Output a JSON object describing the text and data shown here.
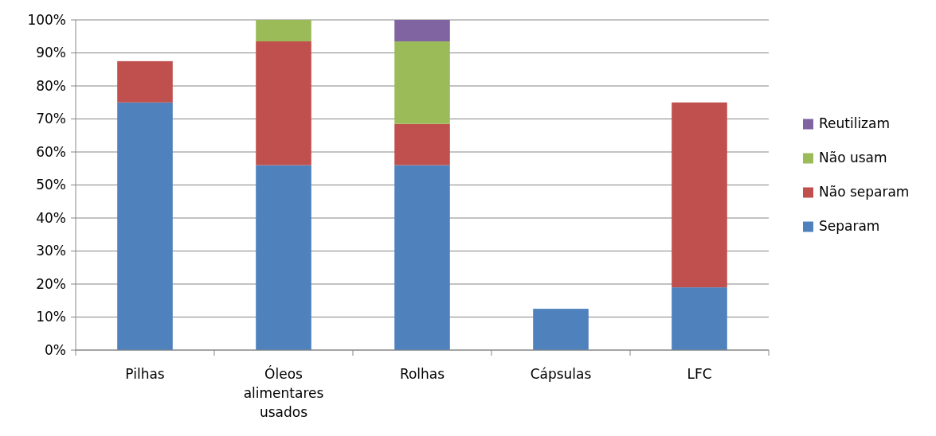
{
  "chart_data": {
    "type": "bar",
    "stacked": true,
    "categories": [
      "Pilhas",
      "Óleos alimentares usados",
      "Rolhas",
      "Cápsulas",
      "LFC"
    ],
    "series": [
      {
        "name": "Separam",
        "color": "#4f81bd",
        "values": [
          75,
          56,
          56,
          12.5,
          19
        ]
      },
      {
        "name": "Não separam",
        "color": "#c0504d",
        "values": [
          12.5,
          37.5,
          12.5,
          0,
          56
        ]
      },
      {
        "name": "Não usam",
        "color": "#9bbb59",
        "values": [
          0,
          6.5,
          25,
          0,
          0
        ]
      },
      {
        "name": "Reutilizam",
        "color": "#8064a2",
        "values": [
          0,
          0,
          6.5,
          0,
          0
        ]
      }
    ],
    "ylim": [
      0,
      100
    ],
    "yticks": [
      {
        "value": 0,
        "label": "0%"
      },
      {
        "value": 10,
        "label": "10%"
      },
      {
        "value": 20,
        "label": "20%"
      },
      {
        "value": 30,
        "label": "30%"
      },
      {
        "value": 40,
        "label": "40%"
      },
      {
        "value": 50,
        "label": "50%"
      },
      {
        "value": 60,
        "label": "60%"
      },
      {
        "value": 70,
        "label": "70%"
      },
      {
        "value": 80,
        "label": "80%"
      },
      {
        "value": 90,
        "label": "90%"
      },
      {
        "value": 100,
        "label": "100%"
      }
    ],
    "grid": "y",
    "legend": "right"
  }
}
